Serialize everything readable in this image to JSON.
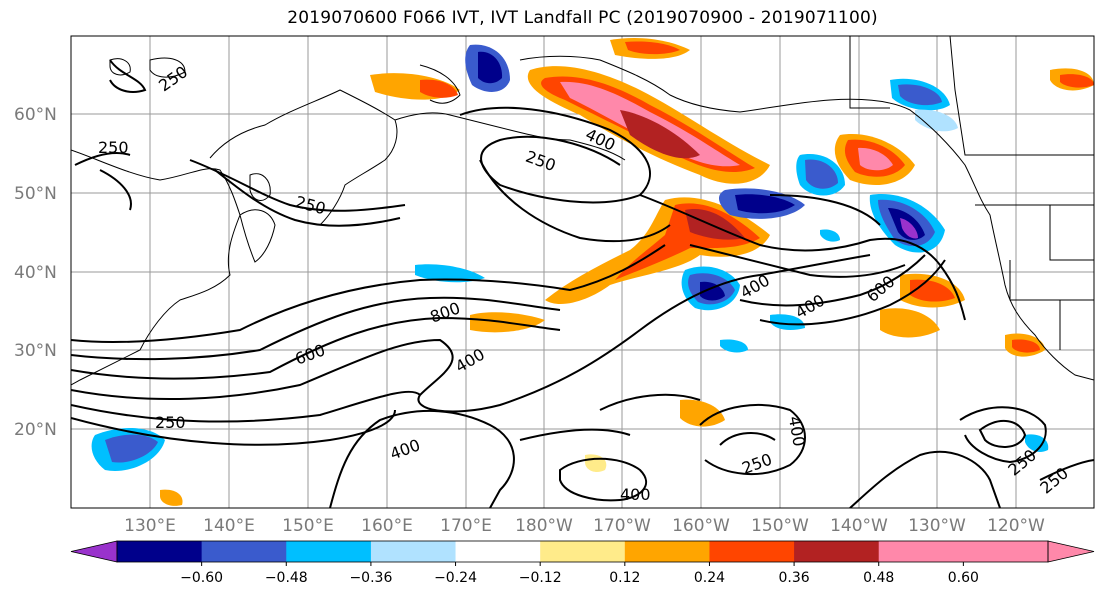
{
  "title": "2019070600 F066 IVT, IVT Landfall PC (2019070900 - 2019071100)",
  "lat_labels": [
    "60°N",
    "50°N",
    "40°N",
    "30°N",
    "20°N"
  ],
  "lon_labels": [
    "130°E",
    "140°E",
    "150°E",
    "160°E",
    "170°E",
    "180°W",
    "170°W",
    "160°W",
    "150°W",
    "140°W",
    "130°W",
    "120°W"
  ],
  "colorbar": {
    "ticks": [
      "−0.60",
      "−0.48",
      "−0.36",
      "−0.24",
      "−0.12",
      "0.12",
      "0.24",
      "0.36",
      "0.48",
      "0.60"
    ],
    "colors": [
      "#9932cc",
      "#00008b",
      "#3a5bcd",
      "#00bfff",
      "#b0e2ff",
      "#ffffff",
      "#ffeb8a",
      "#ffa500",
      "#ff4500",
      "#b22222",
      "#ff88aa",
      "#ff88aa"
    ]
  },
  "contour_labels": {
    "c250": "250",
    "c400": "400",
    "c600": "600",
    "c800": "800"
  }
}
